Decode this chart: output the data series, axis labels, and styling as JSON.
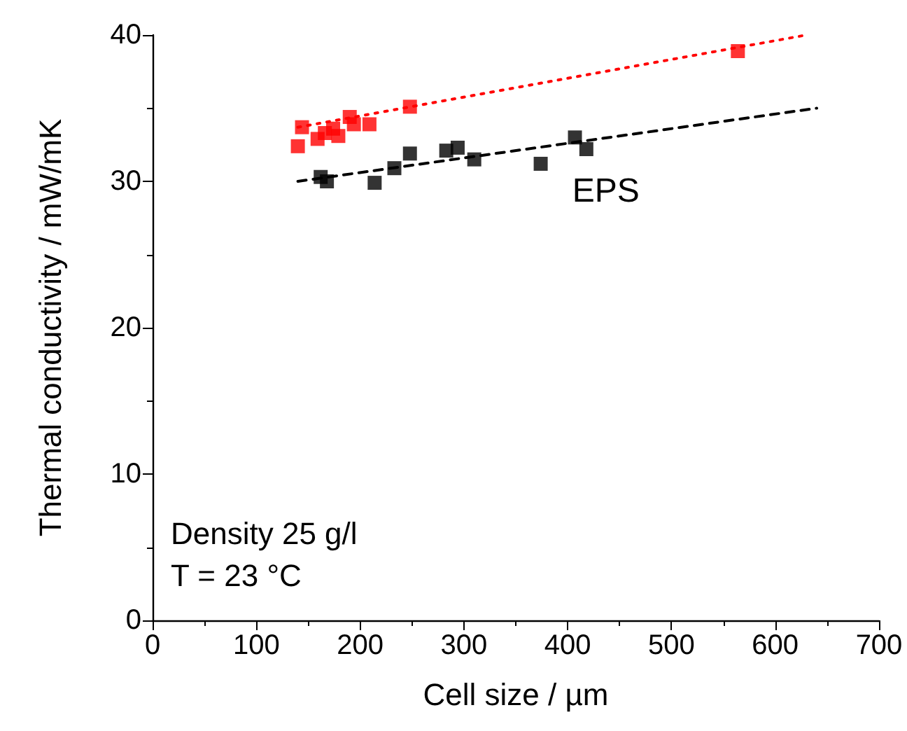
{
  "chart_data": {
    "type": "scatter",
    "xlabel": "Cell size / µm",
    "ylabel": "Thermal conductivity / mW/mK",
    "xlim": [
      0,
      700
    ],
    "xticks": [
      0,
      100,
      200,
      300,
      400,
      500,
      600,
      700
    ],
    "ylim": [
      0,
      40
    ],
    "yticks": [
      0,
      10,
      20,
      30,
      40
    ],
    "grid": false,
    "legend": false,
    "marker": "square",
    "annotations": [
      "Density 25 g/l",
      "T = 23 °C"
    ],
    "series": [
      {
        "color": "#ff0000",
        "x": [
          140,
          144,
          159,
          166,
          174,
          179,
          190,
          194,
          209,
          248,
          564
        ],
        "values": [
          32.4,
          33.7,
          32.9,
          33.3,
          33.6,
          33.1,
          34.4,
          33.9,
          33.9,
          35.1,
          38.9
        ]
      },
      {
        "name": "EPS",
        "color": "#000000",
        "x": [
          162,
          168,
          214,
          233,
          248,
          283,
          294,
          310,
          374,
          407,
          418
        ],
        "values": [
          30.3,
          30.0,
          29.9,
          30.9,
          31.9,
          32.1,
          32.3,
          31.5,
          31.2,
          33.0,
          32.2
        ]
      },
      {
        "type": "line",
        "color": "#ff0000",
        "line_style": "dotted",
        "marker": "none",
        "x": [
          140,
          630
        ],
        "values": [
          33.7,
          40.0
        ]
      },
      {
        "type": "line",
        "color": "#000000",
        "line_style": "dashed",
        "marker": "none",
        "x": [
          140,
          640
        ],
        "values": [
          30.0,
          35.0
        ]
      }
    ]
  }
}
